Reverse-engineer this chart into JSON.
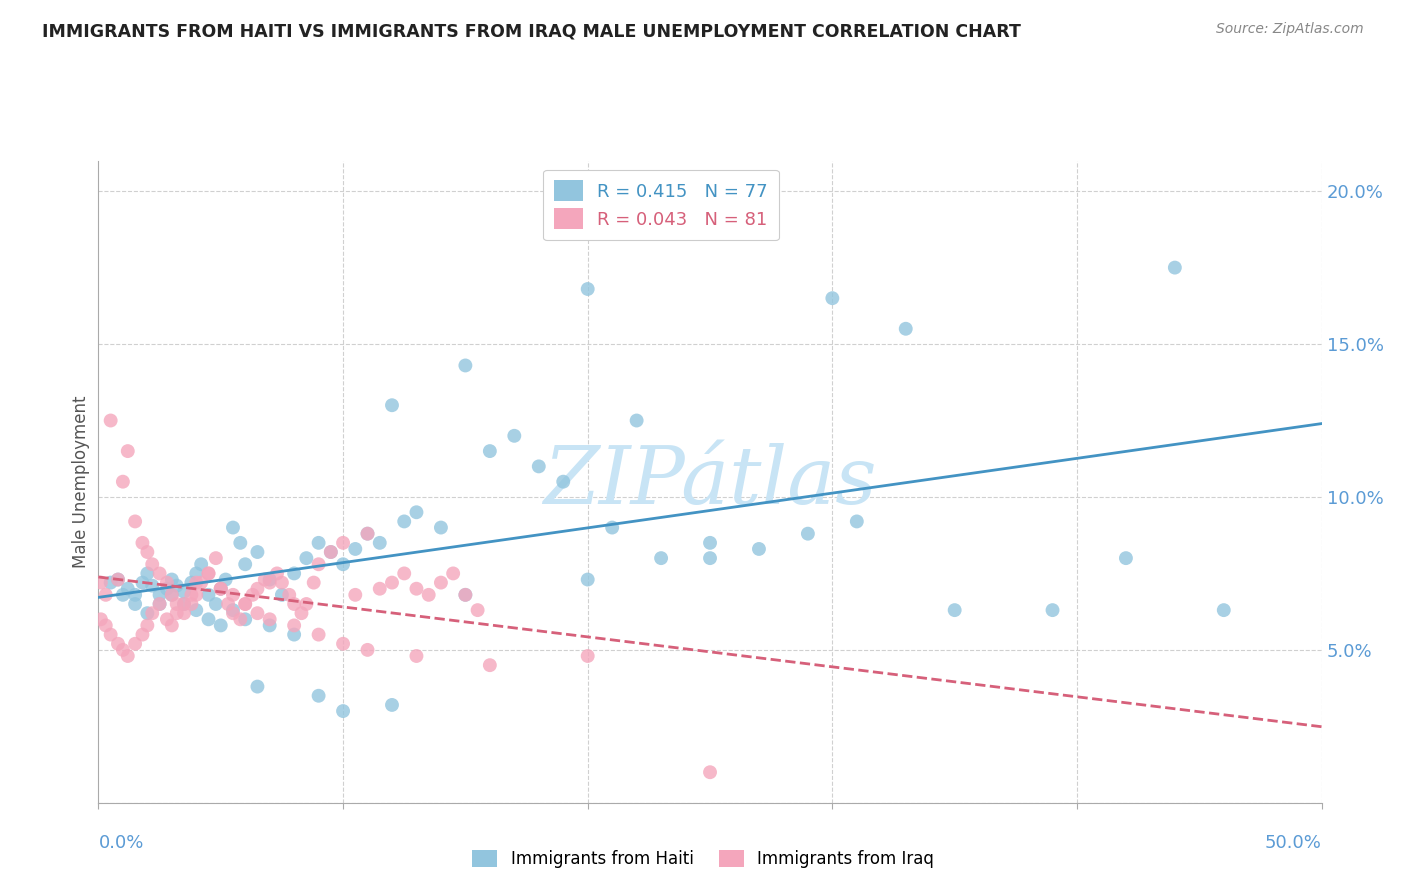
{
  "title": "IMMIGRANTS FROM HAITI VS IMMIGRANTS FROM IRAQ MALE UNEMPLOYMENT CORRELATION CHART",
  "source": "Source: ZipAtlas.com",
  "ylabel": "Male Unemployment",
  "xlim": [
    0.0,
    0.5
  ],
  "ylim": [
    0.0,
    0.21
  ],
  "haiti_R": 0.415,
  "haiti_N": 77,
  "iraq_R": 0.043,
  "iraq_N": 81,
  "haiti_color": "#92c5de",
  "iraq_color": "#f4a6bc",
  "haiti_line_color": "#4393c3",
  "iraq_line_color": "#d6607a",
  "background_color": "#ffffff",
  "grid_color": "#d0d0d0",
  "watermark_color": "#c8e4f5",
  "title_color": "#222222",
  "axis_color": "#5b9bd5",
  "legend_edge_color": "#cccccc",
  "yticks": [
    0.0,
    0.05,
    0.1,
    0.15,
    0.2
  ],
  "ytick_labels": [
    "",
    "5.0%",
    "10.0%",
    "15.0%",
    "20.0%"
  ],
  "xtick_labels": [
    "0.0%",
    "",
    "",
    "",
    "",
    "50.0%"
  ],
  "haiti_x": [
    0.008,
    0.012,
    0.015,
    0.018,
    0.02,
    0.022,
    0.025,
    0.028,
    0.03,
    0.032,
    0.035,
    0.038,
    0.04,
    0.042,
    0.045,
    0.048,
    0.05,
    0.052,
    0.055,
    0.058,
    0.06,
    0.065,
    0.07,
    0.075,
    0.08,
    0.085,
    0.09,
    0.095,
    0.1,
    0.105,
    0.11,
    0.115,
    0.12,
    0.125,
    0.13,
    0.14,
    0.15,
    0.16,
    0.17,
    0.18,
    0.19,
    0.2,
    0.21,
    0.22,
    0.23,
    0.25,
    0.27,
    0.29,
    0.31,
    0.33,
    0.005,
    0.01,
    0.015,
    0.02,
    0.025,
    0.03,
    0.035,
    0.04,
    0.045,
    0.05,
    0.055,
    0.06,
    0.065,
    0.07,
    0.08,
    0.09,
    0.1,
    0.12,
    0.15,
    0.2,
    0.25,
    0.3,
    0.35,
    0.39,
    0.42,
    0.44,
    0.46
  ],
  "haiti_y": [
    0.073,
    0.07,
    0.068,
    0.072,
    0.075,
    0.071,
    0.068,
    0.07,
    0.073,
    0.071,
    0.069,
    0.072,
    0.075,
    0.078,
    0.068,
    0.065,
    0.07,
    0.073,
    0.09,
    0.085,
    0.078,
    0.082,
    0.073,
    0.068,
    0.075,
    0.08,
    0.085,
    0.082,
    0.078,
    0.083,
    0.088,
    0.085,
    0.13,
    0.092,
    0.095,
    0.09,
    0.143,
    0.115,
    0.12,
    0.11,
    0.105,
    0.168,
    0.09,
    0.125,
    0.08,
    0.085,
    0.083,
    0.088,
    0.092,
    0.155,
    0.072,
    0.068,
    0.065,
    0.062,
    0.065,
    0.068,
    0.065,
    0.063,
    0.06,
    0.058,
    0.063,
    0.06,
    0.038,
    0.058,
    0.055,
    0.035,
    0.03,
    0.032,
    0.068,
    0.073,
    0.08,
    0.165,
    0.063,
    0.063,
    0.08,
    0.175,
    0.063
  ],
  "iraq_x": [
    0.001,
    0.003,
    0.005,
    0.008,
    0.01,
    0.012,
    0.015,
    0.018,
    0.02,
    0.022,
    0.025,
    0.028,
    0.03,
    0.032,
    0.035,
    0.038,
    0.04,
    0.042,
    0.045,
    0.048,
    0.05,
    0.053,
    0.055,
    0.058,
    0.06,
    0.063,
    0.065,
    0.068,
    0.07,
    0.073,
    0.075,
    0.078,
    0.08,
    0.083,
    0.085,
    0.088,
    0.09,
    0.095,
    0.1,
    0.105,
    0.11,
    0.115,
    0.12,
    0.125,
    0.13,
    0.135,
    0.14,
    0.145,
    0.15,
    0.155,
    0.001,
    0.003,
    0.005,
    0.008,
    0.01,
    0.012,
    0.015,
    0.018,
    0.02,
    0.022,
    0.025,
    0.028,
    0.03,
    0.032,
    0.035,
    0.038,
    0.04,
    0.045,
    0.05,
    0.055,
    0.06,
    0.065,
    0.07,
    0.08,
    0.09,
    0.1,
    0.11,
    0.13,
    0.16,
    0.2,
    0.25
  ],
  "iraq_y": [
    0.072,
    0.068,
    0.125,
    0.073,
    0.105,
    0.115,
    0.092,
    0.085,
    0.082,
    0.078,
    0.075,
    0.072,
    0.068,
    0.065,
    0.062,
    0.065,
    0.068,
    0.072,
    0.075,
    0.08,
    0.07,
    0.065,
    0.062,
    0.06,
    0.065,
    0.068,
    0.07,
    0.073,
    0.072,
    0.075,
    0.072,
    0.068,
    0.065,
    0.062,
    0.065,
    0.072,
    0.078,
    0.082,
    0.085,
    0.068,
    0.088,
    0.07,
    0.072,
    0.075,
    0.07,
    0.068,
    0.072,
    0.075,
    0.068,
    0.063,
    0.06,
    0.058,
    0.055,
    0.052,
    0.05,
    0.048,
    0.052,
    0.055,
    0.058,
    0.062,
    0.065,
    0.06,
    0.058,
    0.062,
    0.065,
    0.068,
    0.072,
    0.075,
    0.07,
    0.068,
    0.065,
    0.062,
    0.06,
    0.058,
    0.055,
    0.052,
    0.05,
    0.048,
    0.045,
    0.048,
    0.01
  ]
}
